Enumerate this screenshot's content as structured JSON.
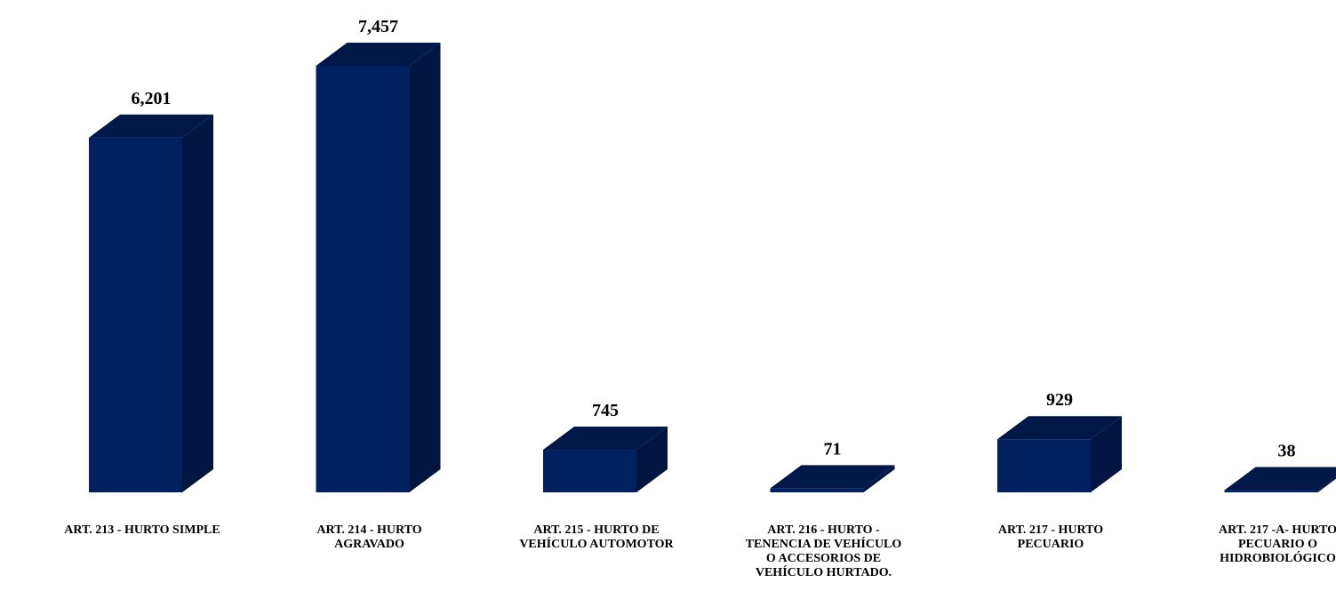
{
  "chart_data": {
    "type": "bar",
    "title": "",
    "xlabel": "",
    "ylabel": "",
    "categories": [
      [
        "ART. 213 - HURTO SIMPLE"
      ],
      [
        "ART. 214 - HURTO",
        "AGRAVADO"
      ],
      [
        "ART. 215 - HURTO DE",
        "VEHÍCULO AUTOMOTOR"
      ],
      [
        "ART. 216 - HURTO -",
        "TENENCIA DE VEHÍCULO",
        "O ACCESORIOS DE",
        "VEHÍCULO HURTADO."
      ],
      [
        "ART. 217 - HURTO",
        "PECUARIO"
      ],
      [
        "ART. 217 -A- HURTO",
        "PECUARIO O",
        "HIDROBIOLÓGICO"
      ]
    ],
    "values": [
      6201,
      7457,
      745,
      71,
      929,
      38
    ],
    "value_labels": [
      "6,201",
      "7,457",
      "745",
      "71",
      "929",
      "38"
    ],
    "ylim": [
      0,
      7457
    ],
    "grid": false,
    "legend": "none",
    "style": "3d-column",
    "colors": {
      "front": "#00205F",
      "top": "#001848",
      "side": "#001640"
    }
  }
}
